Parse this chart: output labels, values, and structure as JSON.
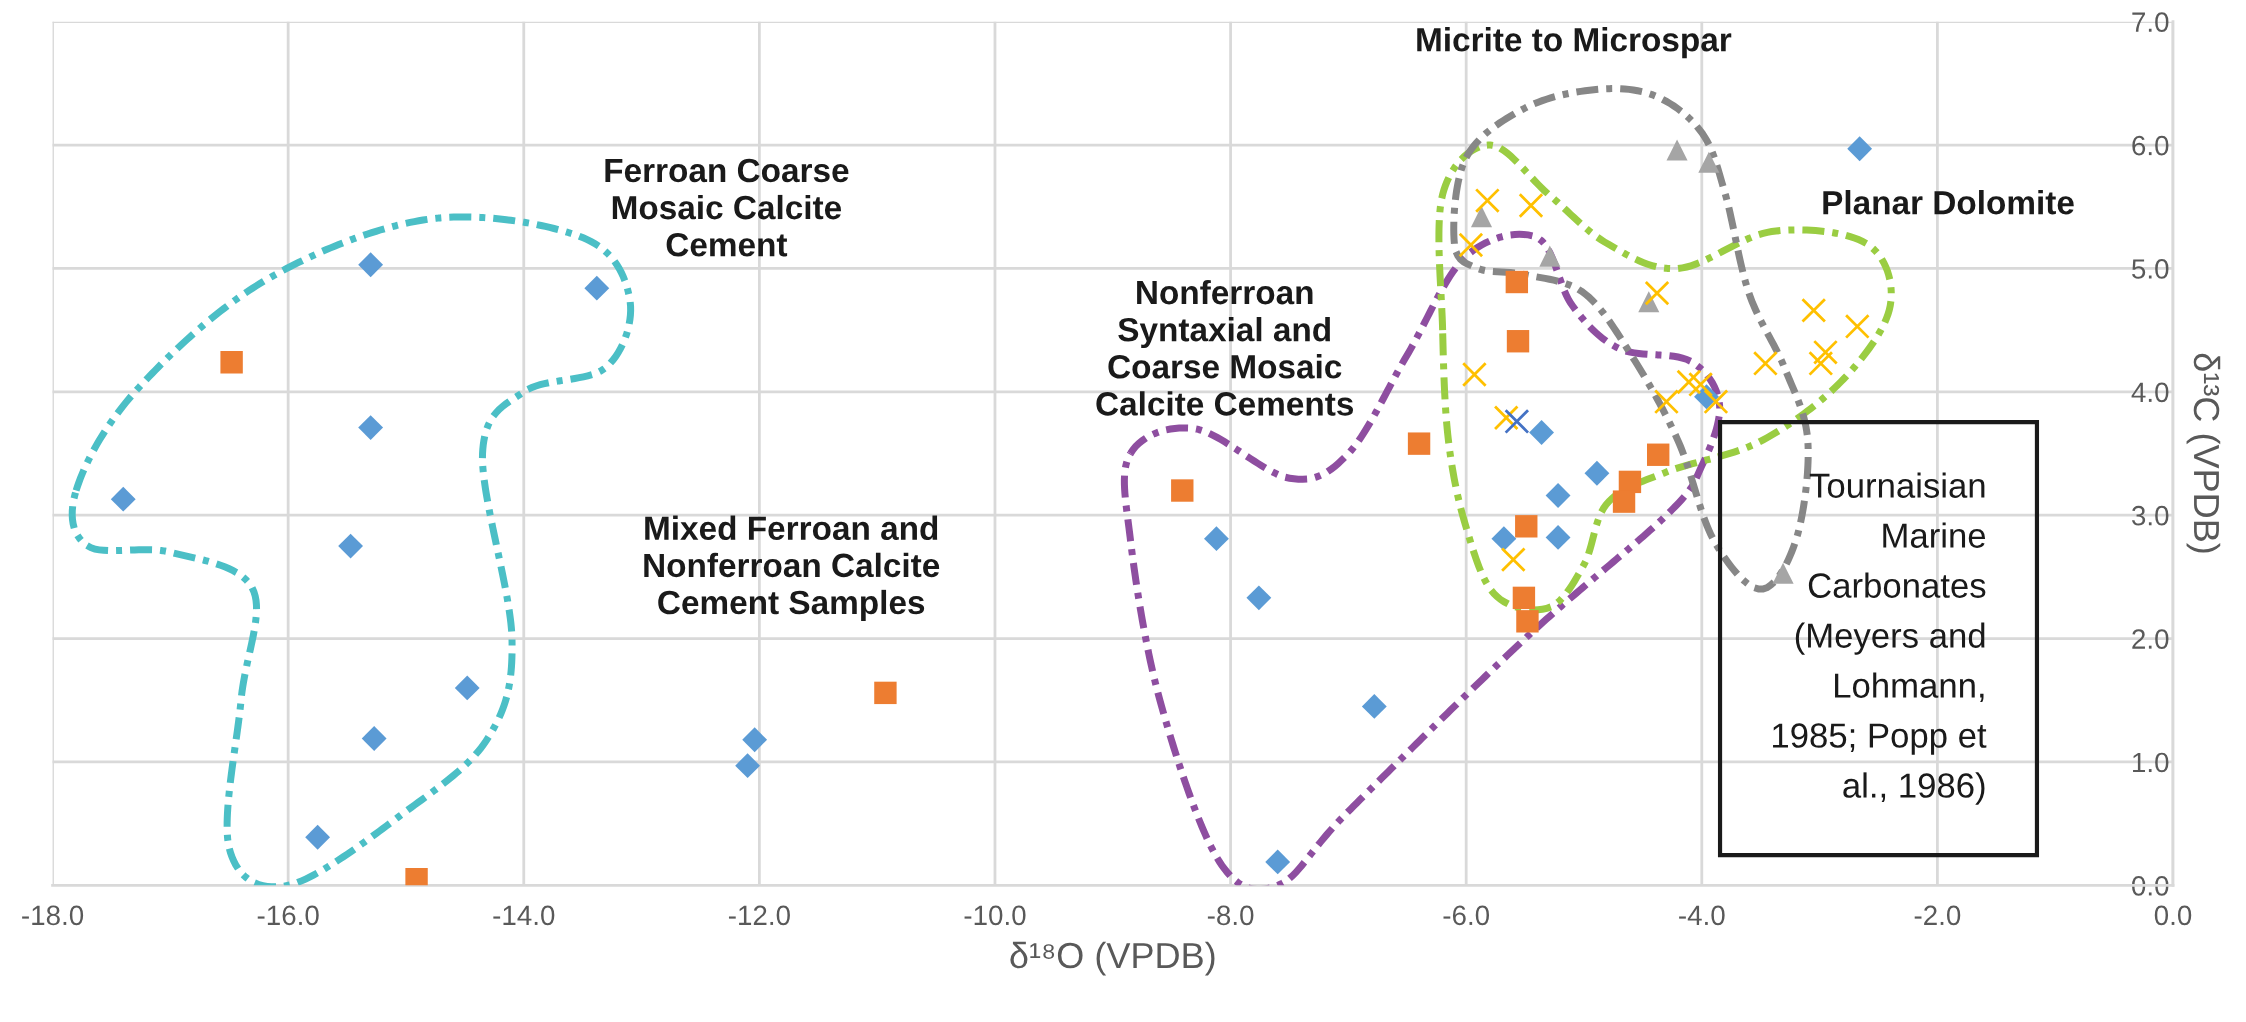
{
  "chart_data": {
    "type": "scatter",
    "xlabel": "δ¹⁸O (VPDB)",
    "ylabel": "δ¹³C (VPDB)",
    "xlim": [
      -18,
      0
    ],
    "ylim": [
      0,
      7
    ],
    "xticks": [
      {
        "value": -18,
        "label": "-18.0"
      },
      {
        "value": -16,
        "label": "-16.0"
      },
      {
        "value": -14,
        "label": "-14.0"
      },
      {
        "value": -12,
        "label": "-12.0"
      },
      {
        "value": -10,
        "label": "-10.0"
      },
      {
        "value": -8,
        "label": "-8.0"
      },
      {
        "value": -6,
        "label": "-6.0"
      },
      {
        "value": -4,
        "label": "-4.0"
      },
      {
        "value": -2,
        "label": "-2.0"
      },
      {
        "value": 0,
        "label": "0.0"
      }
    ],
    "yticks": [
      {
        "value": 0,
        "label": "0.0"
      },
      {
        "value": 1,
        "label": "1.0"
      },
      {
        "value": 2,
        "label": "2.0"
      },
      {
        "value": 3,
        "label": "3.0"
      },
      {
        "value": 4,
        "label": "4.0"
      },
      {
        "value": 5,
        "label": "5.0"
      },
      {
        "value": 6,
        "label": "6.0"
      },
      {
        "value": 7,
        "label": "7.0"
      }
    ],
    "grid": true,
    "legend": false,
    "series": [
      {
        "color": "#5b9bd5",
        "marker": "diamond",
        "x": [
          -15.3,
          -13.38,
          -15.3,
          -17.4,
          -15.47,
          -14.48,
          -15.27,
          -15.75,
          -12.04,
          -12.1,
          -8.12,
          -7.76,
          -6.78,
          -7.6,
          -5.68,
          -5.22,
          -5.22,
          -4.89,
          -5.36,
          -3.96,
          -2.66
        ],
        "values": [
          5.03,
          4.84,
          3.71,
          3.13,
          2.75,
          1.6,
          1.19,
          0.39,
          1.18,
          0.97,
          2.81,
          2.33,
          1.45,
          0.19,
          2.81,
          2.82,
          3.16,
          3.34,
          3.67,
          3.96,
          5.97
        ]
      },
      {
        "color": "#ed7d31",
        "marker": "square",
        "x": [
          -16.48,
          -14.91,
          -10.93,
          -5.57,
          -5.56,
          -6.4,
          -8.41,
          -4.37,
          -4.61,
          -5.49,
          -5.51,
          -5.48,
          -4.66
        ],
        "values": [
          4.24,
          0.05,
          1.56,
          4.89,
          4.41,
          3.58,
          3.2,
          3.49,
          3.27,
          2.91,
          2.33,
          2.14,
          3.11
        ]
      },
      {
        "color": "#a5a5a5",
        "marker": "triangle",
        "x": [
          -4.21,
          -3.94,
          -5.87,
          -5.29,
          -4.45,
          -3.31
        ],
        "values": [
          5.96,
          5.86,
          5.42,
          5.1,
          4.73,
          2.53
        ]
      },
      {
        "color": "#ffc000",
        "marker": "cross",
        "x": [
          -5.82,
          -5.45,
          -5.96,
          -5.93,
          -4.38,
          -5.66,
          -5.6,
          -4.11,
          -4.01,
          -4.3,
          -3.88,
          -3.46,
          -3.05,
          -2.68,
          -2.95,
          -2.99
        ],
        "values": [
          5.55,
          5.51,
          5.19,
          4.14,
          4.8,
          3.79,
          2.64,
          4.08,
          4.06,
          3.92,
          3.92,
          4.23,
          4.66,
          4.53,
          4.32,
          4.23
        ]
      },
      {
        "color": "#4472c4",
        "marker": "cross",
        "x": [
          -5.57
        ],
        "values": [
          3.76
        ]
      }
    ],
    "annotations": [
      "Ferroan Coarse\nMosaic Calcite\nCement",
      "Mixed Ferroan and\nNonferroan Calcite\nCement Samples",
      "Nonferroan\nSyntaxial and\nCoarse Mosaic\nCalcite Cements",
      "Micrite to Microspar",
      "Planar Dolomite",
      "Tournaisian\nMarine\nCarbonates\n(Meyers and\nLohmann,\n1985; Popp et\nal., 1986)"
    ]
  }
}
